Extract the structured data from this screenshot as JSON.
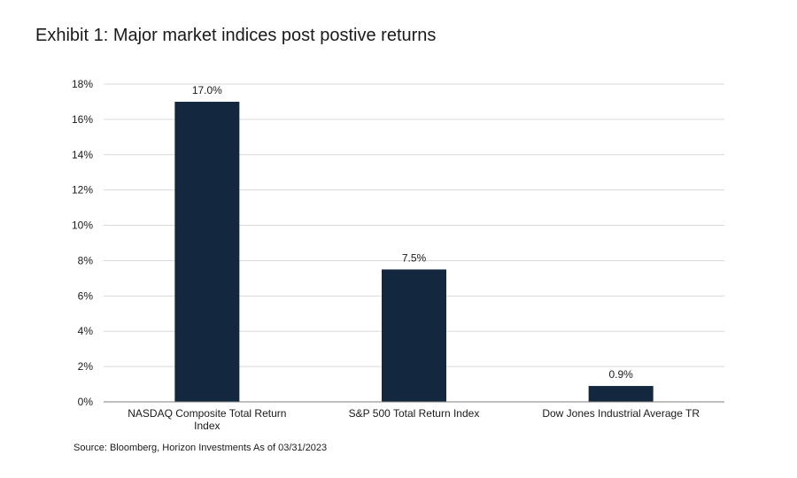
{
  "header": {
    "title": "Exhibit 1: Major market indices post postive returns"
  },
  "footer": {
    "source": "Source: Bloomberg, Horizon Investments  As of 03/31/2023"
  },
  "colors": {
    "bar": "#13283f",
    "grid": "#d9d9d9",
    "axis": "#7f7f7f"
  },
  "chart_data": {
    "type": "bar",
    "title": "Exhibit 1: Major market indices post postive returns",
    "xlabel": "",
    "ylabel": "",
    "categories": [
      [
        "NASDAQ Composite Total Return",
        "Index"
      ],
      [
        "S&P 500 Total Return Index"
      ],
      [
        "Dow Jones Industrial Average TR"
      ]
    ],
    "values": [
      17.0,
      7.5,
      0.9
    ],
    "data_labels": [
      "17.0%",
      "7.5%",
      "0.9%"
    ],
    "ylim": [
      0,
      18
    ],
    "yticks": [
      0,
      2,
      4,
      6,
      8,
      10,
      12,
      14,
      16,
      18
    ],
    "ytick_labels": [
      "0%",
      "2%",
      "4%",
      "6%",
      "8%",
      "10%",
      "12%",
      "14%",
      "16%",
      "18%"
    ],
    "grid": true,
    "legend": "none"
  }
}
